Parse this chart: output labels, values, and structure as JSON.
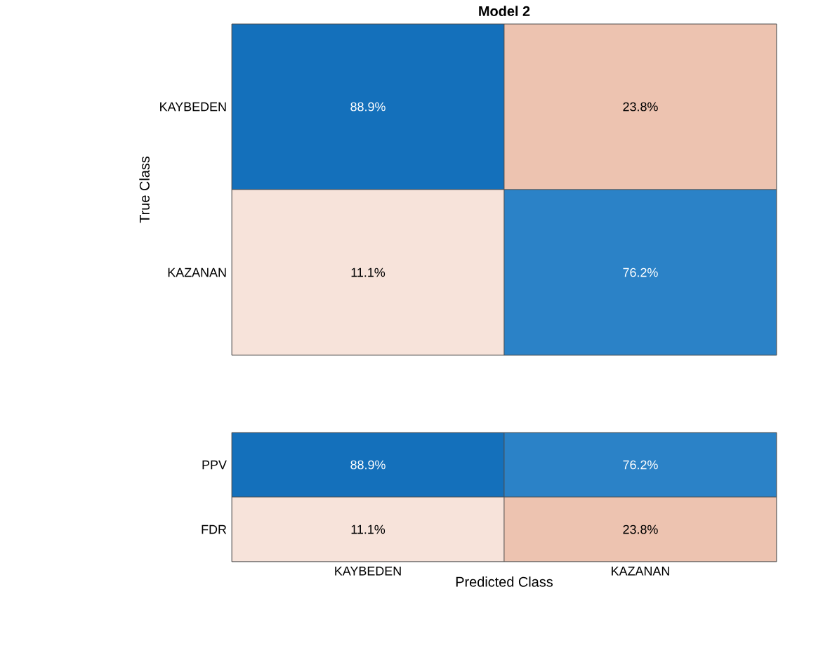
{
  "chart_data": [
    {
      "type": "heatmap",
      "title": "Model 2",
      "ylabel": "True Class",
      "categories": [
        null,
        null
      ],
      "y_categories": [
        "KAYBEDEN",
        "KAZANAN"
      ],
      "cells": [
        [
          88.9,
          23.8
        ],
        [
          11.1,
          76.2
        ]
      ],
      "cell_labels": [
        [
          "88.9%",
          "23.8%"
        ],
        [
          "11.1%",
          "76.2%"
        ]
      ],
      "tick_labels": "y"
    },
    {
      "type": "heatmap",
      "xlabel": "Predicted Class",
      "categories": [
        "KAYBEDEN",
        "KAZANAN"
      ],
      "y_categories": [
        "PPV",
        "FDR"
      ],
      "cells": [
        [
          88.9,
          76.2
        ],
        [
          11.1,
          23.8
        ]
      ],
      "cell_labels": [
        [
          "88.9%",
          "76.2%"
        ],
        [
          "11.1%",
          "23.8%"
        ]
      ]
    }
  ]
}
